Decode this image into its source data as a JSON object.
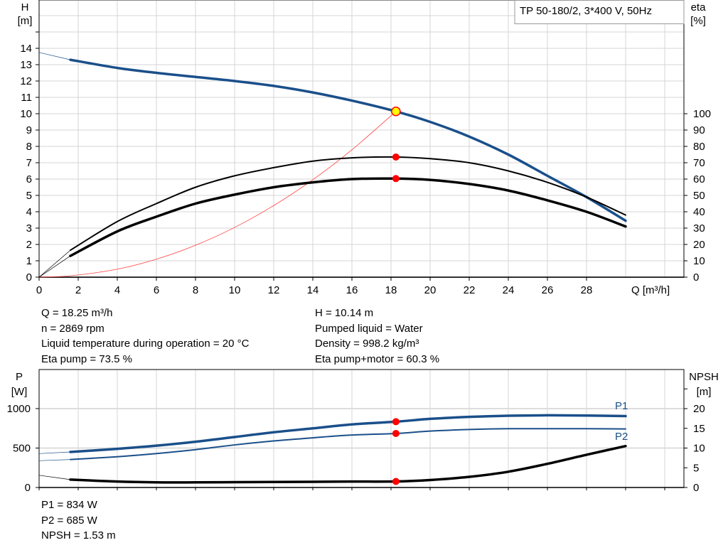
{
  "chart_data": [
    {
      "type": "line",
      "title": "TP 50-180/2, 3*400 V, 50Hz",
      "xlabel": "Q [m³/h]",
      "ylabel": "H [m]",
      "y2label": "eta [%]",
      "xlim": [
        0,
        32
      ],
      "ylim": [
        0,
        16
      ],
      "y2lim": [
        0,
        160
      ],
      "grid": true,
      "xticks": [
        0,
        2,
        4,
        6,
        8,
        10,
        12,
        14,
        16,
        18,
        20,
        22,
        24,
        26,
        28
      ],
      "yticks": [
        0,
        1,
        2,
        3,
        4,
        5,
        6,
        7,
        8,
        9,
        10,
        11,
        12,
        13,
        14
      ],
      "y2ticks": [
        0,
        10,
        20,
        30,
        40,
        50,
        60,
        70,
        80,
        90,
        100
      ],
      "x": [
        0,
        1.6,
        4,
        6,
        8,
        10,
        12,
        14,
        16,
        18.25,
        20,
        22,
        24,
        26,
        28,
        30
      ],
      "series": [
        {
          "name": "H",
          "axis": "left",
          "color": "#1a4f8a",
          "values": [
            13.75,
            13.3,
            12.8,
            12.5,
            12.25,
            12.0,
            11.7,
            11.3,
            10.8,
            10.14,
            9.5,
            8.6,
            7.5,
            6.2,
            4.9,
            3.45
          ]
        },
        {
          "name": "Eta pump",
          "axis": "right",
          "color": "#000000",
          "values": [
            0,
            16.5,
            34,
            45,
            55,
            62,
            67,
            71,
            73,
            73.5,
            72.5,
            70,
            65,
            58,
            49,
            38
          ]
        },
        {
          "name": "Eta pump+motor",
          "axis": "right",
          "color": "#000000",
          "values": [
            0,
            13,
            28,
            37,
            45,
            50.5,
            55,
            58,
            60,
            60.3,
            59.5,
            57,
            53,
            47,
            40,
            31
          ]
        },
        {
          "name": "System curve",
          "axis": "left",
          "color": "#ff4040",
          "values": [
            0,
            0.08,
            0.49,
            1.1,
            1.95,
            3.04,
            4.38,
            5.96,
            7.79,
            10.14,
            null,
            null,
            null,
            null,
            null,
            null
          ]
        }
      ],
      "duty_point": {
        "Q": 18.25,
        "H": 10.14,
        "eta_pump": 73.5,
        "eta_pump_motor": 60.3
      }
    },
    {
      "type": "line",
      "ylabel": "P [W]",
      "y2label": "NPSH [m]",
      "xlim": [
        0,
        32
      ],
      "ylim": [
        0,
        1500
      ],
      "y2lim": [
        0,
        30
      ],
      "grid": true,
      "yticks": [
        0,
        500,
        1000
      ],
      "y2ticks": [
        0,
        5,
        10,
        15,
        20
      ],
      "x": [
        0,
        1.6,
        4,
        6,
        8,
        10,
        12,
        14,
        16,
        18.25,
        20,
        22,
        24,
        26,
        28,
        30
      ],
      "series": [
        {
          "name": "P1",
          "axis": "left",
          "color": "#1a4f8a",
          "values": [
            430,
            450,
            490,
            530,
            580,
            640,
            700,
            750,
            800,
            834,
            870,
            895,
            910,
            915,
            912,
            905
          ]
        },
        {
          "name": "P2",
          "axis": "left",
          "color": "#1a4f8a",
          "values": [
            340,
            355,
            390,
            430,
            480,
            540,
            590,
            630,
            665,
            685,
            715,
            735,
            745,
            745,
            745,
            742
          ]
        },
        {
          "name": "NPSH",
          "axis": "right",
          "color": "#000000",
          "values": [
            3.1,
            2.0,
            1.5,
            1.3,
            1.3,
            1.35,
            1.4,
            1.45,
            1.5,
            1.53,
            1.9,
            2.7,
            4.0,
            6.0,
            8.3,
            10.5
          ]
        }
      ],
      "duty_point": {
        "Q": 18.25,
        "P1": 834,
        "P2": 685,
        "NPSH": 1.53
      }
    }
  ],
  "labels": {
    "H": "H",
    "H_unit": "[m]",
    "eta": "eta",
    "eta_unit": "[%]",
    "Q": "Q [m³/h]",
    "P": "P",
    "P_unit": "[W]",
    "NPSH": "NPSH",
    "NPSH_unit": "[m]",
    "P1": "P1",
    "P2": "P2",
    "title": "TP 50-180/2, 3*400 V, 50Hz"
  },
  "info_left": [
    "Q = 18.25 m³/h",
    "n = 2869 rpm",
    "Liquid temperature during operation = 20 °C",
    "Eta pump = 73.5 %"
  ],
  "info_right": [
    "H = 10.14 m",
    "Pumped liquid = Water",
    "Density = 998.2 kg/m³",
    "Eta pump+motor = 60.3 %"
  ],
  "info_bottom": [
    "P1 = 834 W",
    "P2 = 685 W",
    "NPSH = 1.53 m"
  ],
  "colors": {
    "accent": "#1a4f8a",
    "marker": "#ff0000",
    "duty_fill": "#ffff00",
    "grid": "#d4d4d4"
  }
}
